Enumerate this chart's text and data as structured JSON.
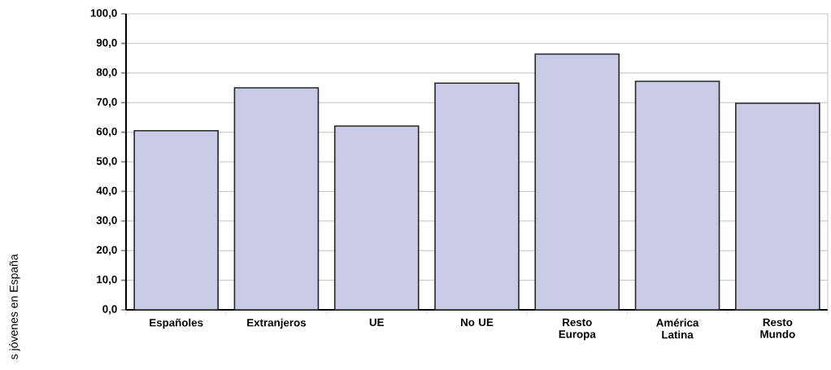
{
  "chart_data": {
    "type": "bar",
    "annotations": [
      "s jóvenes en España"
    ],
    "categories": [
      "Españoles",
      "Extranjeros",
      "UE",
      "No UE",
      "Resto Europa",
      "América Latina",
      "Resto Mundo"
    ],
    "values": [
      60.5,
      75.0,
      62.1,
      76.6,
      86.4,
      77.2,
      69.8
    ],
    "color": "#c9cae6",
    "ylim": [
      0,
      100
    ],
    "yticks": [
      {
        "value": 0,
        "label": "0,0"
      },
      {
        "value": 10,
        "label": "10,0"
      },
      {
        "value": 20,
        "label": "20,0"
      },
      {
        "value": 30,
        "label": "30,0"
      },
      {
        "value": 40,
        "label": "40,0"
      },
      {
        "value": 50,
        "label": "50,0"
      },
      {
        "value": 60,
        "label": "60,0"
      },
      {
        "value": 70,
        "label": "70,0"
      },
      {
        "value": 80,
        "label": "80,0"
      },
      {
        "value": 90,
        "label": "90,0"
      },
      {
        "value": 100,
        "label": "100,0"
      }
    ],
    "grid": "y"
  }
}
